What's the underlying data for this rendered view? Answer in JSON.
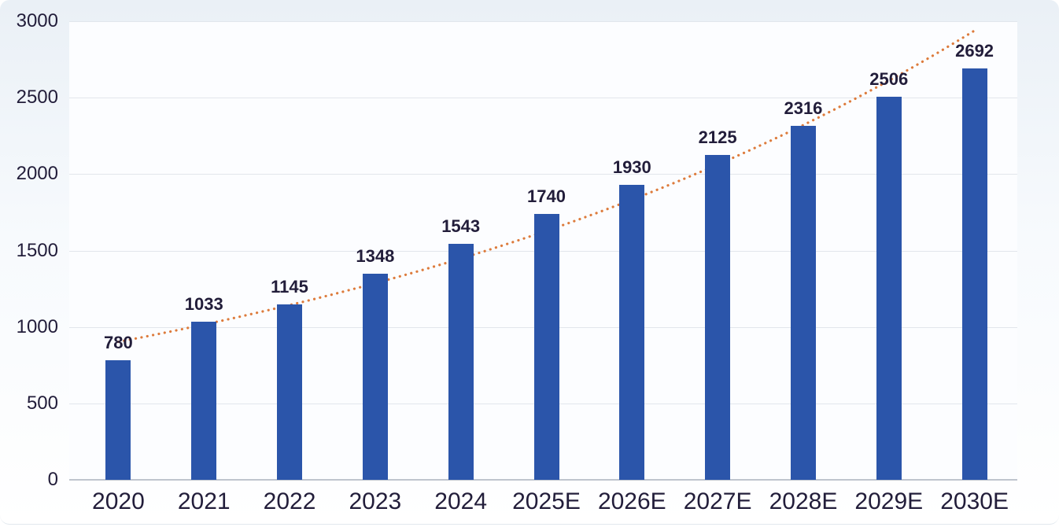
{
  "card": {
    "background_top": "#eaf0f6",
    "background_bottom": "#ffffff",
    "corner_radius": 12
  },
  "chart_data": {
    "type": "bar",
    "title": "",
    "xlabel": "",
    "ylabel": "",
    "categories": [
      "2020",
      "2021",
      "2022",
      "2023",
      "2024",
      "2025E",
      "2026E",
      "2027E",
      "2028E",
      "2029E",
      "2030E"
    ],
    "series": [
      {
        "name": "annual-value-bars",
        "type": "bar",
        "color": "#2B55AA",
        "values": [
          780,
          1033,
          1145,
          1348,
          1543,
          1740,
          1930,
          2125,
          2316,
          2506,
          2692
        ]
      },
      {
        "name": "exponential-trendline",
        "type": "trendline",
        "style": "dotted",
        "color": "#DD7B3C"
      }
    ],
    "data_labels": [
      "780",
      "1033",
      "1145",
      "1348",
      "1543",
      "1740",
      "1930",
      "2125",
      "2316",
      "2506",
      "2692"
    ],
    "y_ticks": [
      0,
      500,
      1000,
      1500,
      2000,
      2500,
      3000
    ],
    "ylim": [
      0,
      3000
    ],
    "grid": "horizontal",
    "legend_position": "none",
    "plot_background": "#fcfdff",
    "gridline_color": "#e2e6ec",
    "axis_line_color": "#bfc5cd",
    "text_color": "#221d3a"
  }
}
